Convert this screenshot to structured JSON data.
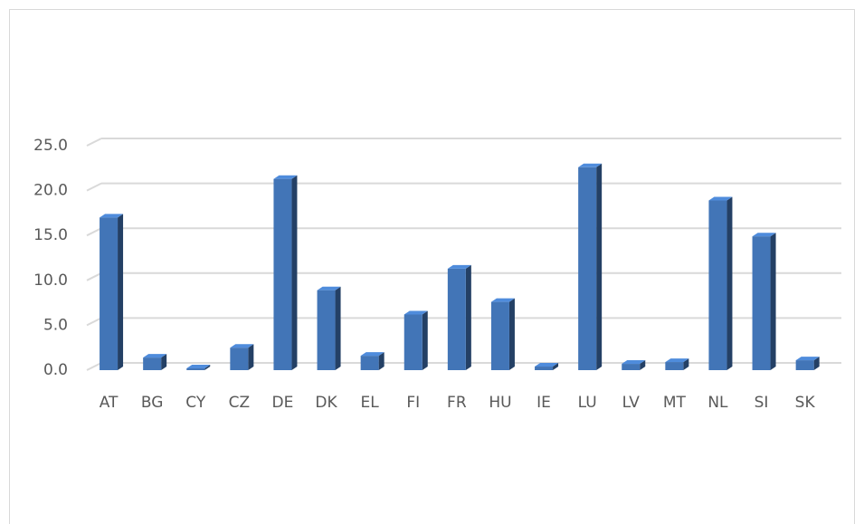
{
  "chart_data": {
    "type": "bar",
    "categories": [
      "AT",
      "BG",
      "CY",
      "CZ",
      "DE",
      "DK",
      "EL",
      "FI",
      "FR",
      "HU",
      "IE",
      "LU",
      "LV",
      "MT",
      "NL",
      "SI",
      "SK"
    ],
    "values": [
      17.0,
      1.4,
      0.2,
      2.5,
      21.3,
      8.9,
      1.6,
      6.2,
      11.3,
      7.6,
      0.4,
      22.6,
      0.7,
      0.9,
      18.9,
      14.9,
      1.1
    ],
    "color": "#4275b7",
    "ylim": [
      0,
      25
    ],
    "yticks": [
      {
        "value": 0,
        "label": "0.0"
      },
      {
        "value": 5,
        "label": "5.0"
      },
      {
        "value": 10,
        "label": "10.0"
      },
      {
        "value": 15,
        "label": "15.0"
      },
      {
        "value": 20,
        "label": "20.0"
      },
      {
        "value": 25,
        "label": "25.0"
      }
    ],
    "grid": true
  }
}
